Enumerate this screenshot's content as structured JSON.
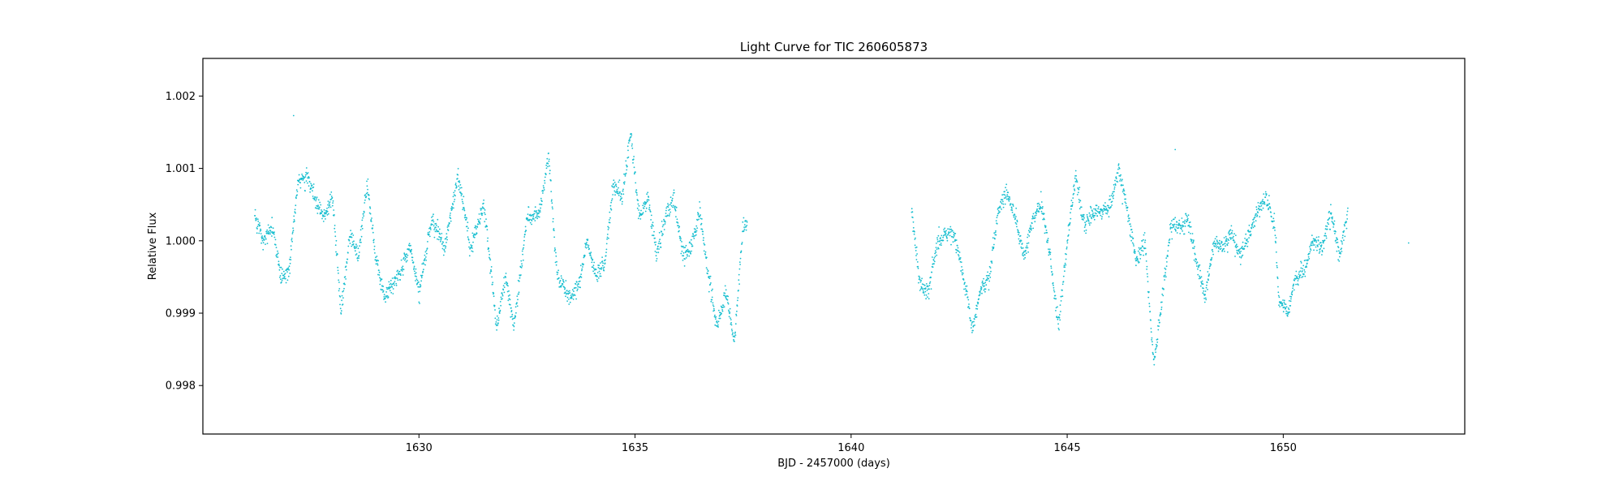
{
  "chart_data": {
    "type": "scatter",
    "title": "Light Curve for TIC 260605873",
    "xlabel": "BJD - 2457000 (days)",
    "ylabel": "Relative Flux",
    "xlim": [
      1625.0,
      1654.2
    ],
    "ylim": [
      0.99733,
      1.00252
    ],
    "xticks": [
      1630,
      1635,
      1640,
      1645,
      1650
    ],
    "xtick_labels": [
      "1630",
      "1635",
      "1640",
      "1645",
      "1650"
    ],
    "yticks": [
      0.998,
      0.999,
      1.0,
      1.001,
      1.002
    ],
    "ytick_labels": [
      "0.998",
      "0.999",
      "1.000",
      "1.001",
      "1.002"
    ],
    "grid": false,
    "legend": "none",
    "marker_color": "#17becf",
    "trend": [
      [
        1626.2,
        1.0003
      ],
      [
        1626.4,
        1.0
      ],
      [
        1626.6,
        1.0002
      ],
      [
        1626.8,
        0.9995
      ],
      [
        1627.0,
        0.9996
      ],
      [
        1627.2,
        1.0008
      ],
      [
        1627.4,
        1.0009
      ],
      [
        1627.6,
        1.0006
      ],
      [
        1627.8,
        1.0003
      ],
      [
        1628.0,
        1.0006
      ],
      [
        1628.2,
        0.999
      ],
      [
        1628.4,
        1.0001
      ],
      [
        1628.6,
        0.9998
      ],
      [
        1628.8,
        1.0008
      ],
      [
        1629.0,
        0.9998
      ],
      [
        1629.2,
        0.9992
      ],
      [
        1629.4,
        0.9994
      ],
      [
        1629.6,
        0.9996
      ],
      [
        1629.8,
        0.9999
      ],
      [
        1630.0,
        0.9993
      ],
      [
        1630.3,
        1.0003
      ],
      [
        1630.6,
        0.9999
      ],
      [
        1630.9,
        1.0009
      ],
      [
        1631.2,
        0.9999
      ],
      [
        1631.5,
        1.0005
      ],
      [
        1631.8,
        0.9988
      ],
      [
        1632.0,
        0.9995
      ],
      [
        1632.2,
        0.9988
      ],
      [
        1632.5,
        1.0003
      ],
      [
        1632.8,
        1.0004
      ],
      [
        1633.0,
        1.0012
      ],
      [
        1633.2,
        0.9995
      ],
      [
        1633.5,
        0.9992
      ],
      [
        1633.7,
        0.9994
      ],
      [
        1633.9,
        1.0
      ],
      [
        1634.1,
        0.9995
      ],
      [
        1634.3,
        0.9997
      ],
      [
        1634.5,
        1.0008
      ],
      [
        1634.7,
        1.0006
      ],
      [
        1634.9,
        1.0015
      ],
      [
        1635.1,
        1.0003
      ],
      [
        1635.3,
        1.0006
      ],
      [
        1635.5,
        0.9998
      ],
      [
        1635.7,
        1.0003
      ],
      [
        1635.9,
        1.0006
      ],
      [
        1636.1,
        0.9998
      ],
      [
        1636.3,
        0.9999
      ],
      [
        1636.5,
        1.0004
      ],
      [
        1636.7,
        0.9995
      ],
      [
        1636.9,
        0.9988
      ],
      [
        1637.1,
        0.9993
      ],
      [
        1637.3,
        0.9986
      ],
      [
        1637.5,
        1.0002
      ],
      [
        1637.6,
        1.0002
      ],
      [
        1641.4,
        1.0004
      ],
      [
        1641.6,
        0.9994
      ],
      [
        1641.8,
        0.9993
      ],
      [
        1642.0,
        1.0
      ],
      [
        1642.2,
        1.0001
      ],
      [
        1642.4,
        1.0001
      ],
      [
        1642.6,
        0.9995
      ],
      [
        1642.8,
        0.9988
      ],
      [
        1643.0,
        0.9993
      ],
      [
        1643.2,
        0.9995
      ],
      [
        1643.4,
        1.0004
      ],
      [
        1643.6,
        1.0007
      ],
      [
        1643.8,
        1.0003
      ],
      [
        1644.0,
        0.9998
      ],
      [
        1644.2,
        1.0003
      ],
      [
        1644.4,
        1.0005
      ],
      [
        1644.6,
        0.9998
      ],
      [
        1644.8,
        0.9988
      ],
      [
        1645.0,
        1.0
      ],
      [
        1645.2,
        1.0009
      ],
      [
        1645.4,
        1.0002
      ],
      [
        1645.6,
        1.0004
      ],
      [
        1645.8,
        1.0004
      ],
      [
        1646.0,
        1.0005
      ],
      [
        1646.2,
        1.001
      ],
      [
        1646.4,
        1.0004
      ],
      [
        1646.6,
        0.9997
      ],
      [
        1646.8,
        1.0
      ],
      [
        1647.0,
        0.9983
      ],
      [
        1647.2,
        0.9992
      ],
      [
        1647.4,
        1.0002
      ],
      [
        1647.6,
        1.0002
      ],
      [
        1647.8,
        1.0003
      ],
      [
        1648.0,
        0.9997
      ],
      [
        1648.2,
        0.9992
      ],
      [
        1648.4,
        1.0
      ],
      [
        1648.6,
        0.9999
      ],
      [
        1648.8,
        1.0001
      ],
      [
        1649.0,
        0.9998
      ],
      [
        1649.2,
        1.0001
      ],
      [
        1649.4,
        1.0004
      ],
      [
        1649.6,
        1.0006
      ],
      [
        1649.8,
        1.0002
      ],
      [
        1649.9,
        0.9992
      ],
      [
        1650.1,
        0.999
      ],
      [
        1650.3,
        0.9995
      ],
      [
        1650.5,
        0.9996
      ],
      [
        1650.7,
        1.0
      ],
      [
        1650.9,
        0.9999
      ],
      [
        1651.1,
        1.0004
      ],
      [
        1651.3,
        0.9998
      ],
      [
        1651.5,
        1.0004
      ]
    ],
    "noise_amplitude": 0.00012,
    "points_per_day": 150,
    "outliers": [
      [
        1627.1,
        1.00173
      ],
      [
        1647.5,
        1.00126
      ],
      [
        1652.9,
        0.99997
      ]
    ]
  }
}
